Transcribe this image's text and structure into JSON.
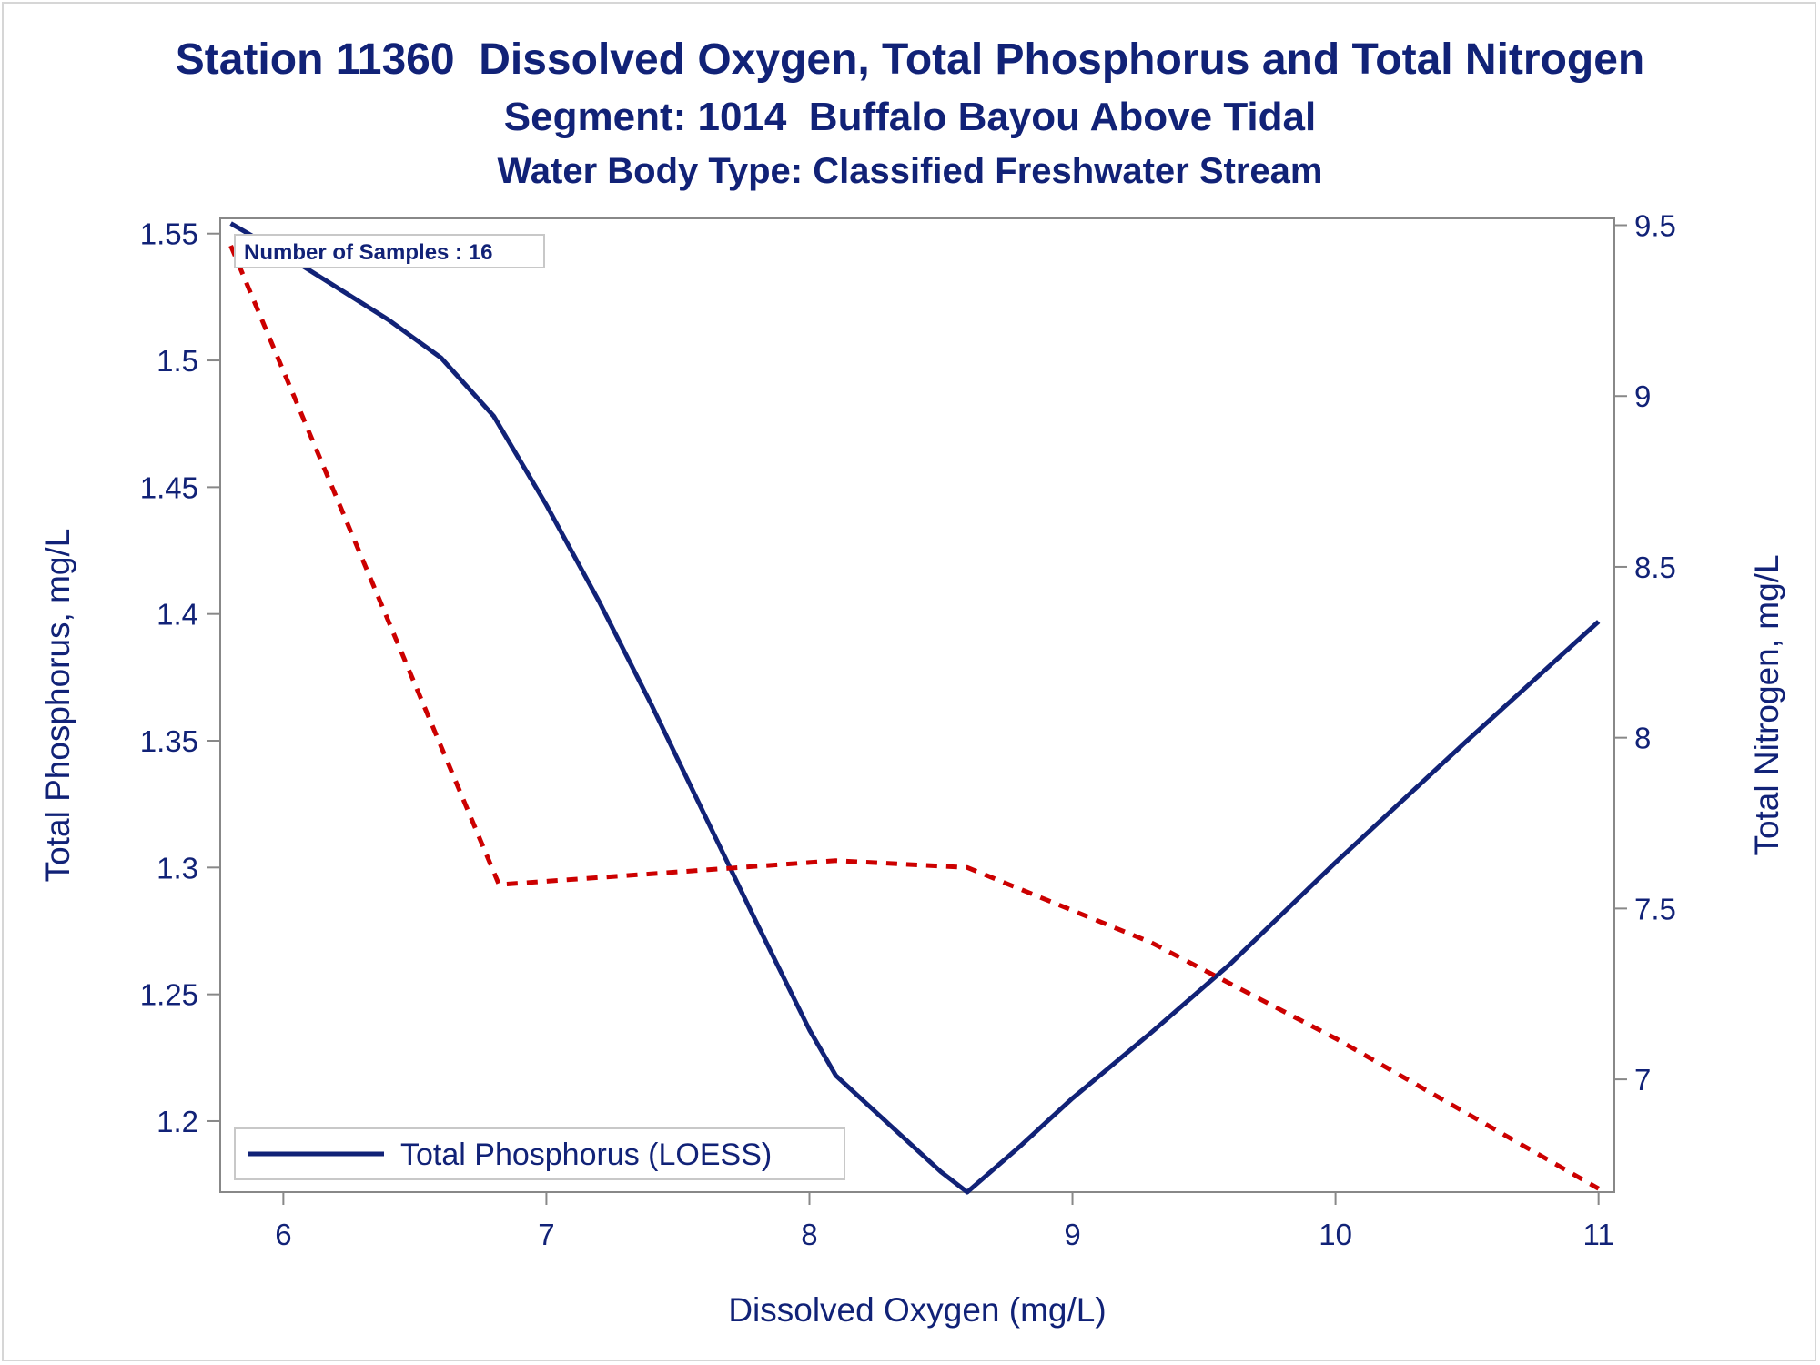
{
  "titles": {
    "title": "Station 11360  Dissolved Oxygen, Total Phosphorus and Total Nitrogen",
    "subtitle": "Segment: 1014  Buffalo Bayou Above Tidal",
    "subtitle2": "Water Body Type: Classified Freshwater Stream"
  },
  "annotation": "Number of Samples : 16",
  "chart_data": {
    "type": "line",
    "xlabel": "Dissolved Oxygen (mg/L)",
    "ylabel": "Total Phosphorus, mg/L",
    "y2label": "Total Nitrogen, mg/L",
    "xlim": [
      5.76,
      11.06
    ],
    "ylim": [
      1.172,
      1.556
    ],
    "y2lim": [
      6.67,
      9.52
    ],
    "xticks": [
      6,
      7,
      8,
      9,
      10,
      11
    ],
    "yticks": [
      1.2,
      1.25,
      1.3,
      1.35,
      1.4,
      1.45,
      1.5,
      1.55
    ],
    "y2ticks": [
      7,
      7.5,
      8,
      8.5,
      9,
      9.5
    ],
    "grid": false,
    "legend_position": "bottom-left",
    "colors": {
      "phosphorus": "#112277",
      "nitrogen": "#cc0000",
      "axis": "#888888"
    },
    "series": [
      {
        "name": "Total Phosphorus (LOESS)",
        "axis": "left",
        "style": "solid",
        "x": [
          5.8,
          6.0,
          6.2,
          6.4,
          6.6,
          6.8,
          7.0,
          7.2,
          7.4,
          7.6,
          7.8,
          8.0,
          8.1,
          8.3,
          8.5,
          8.6,
          8.8,
          9.0,
          9.3,
          9.6,
          10.0,
          10.5,
          11.0
        ],
        "y": [
          1.554,
          1.542,
          1.529,
          1.516,
          1.501,
          1.478,
          1.443,
          1.405,
          1.364,
          1.321,
          1.278,
          1.236,
          1.218,
          1.199,
          1.18,
          1.172,
          1.19,
          1.209,
          1.235,
          1.262,
          1.302,
          1.35,
          1.397
        ]
      },
      {
        "axis": "right",
        "style": "dashed",
        "x": [
          5.8,
          6.82,
          8.1,
          8.6,
          9.3,
          10.0,
          11.0
        ],
        "y": [
          9.44,
          7.57,
          7.64,
          7.62,
          7.4,
          7.12,
          6.68
        ]
      }
    ]
  }
}
